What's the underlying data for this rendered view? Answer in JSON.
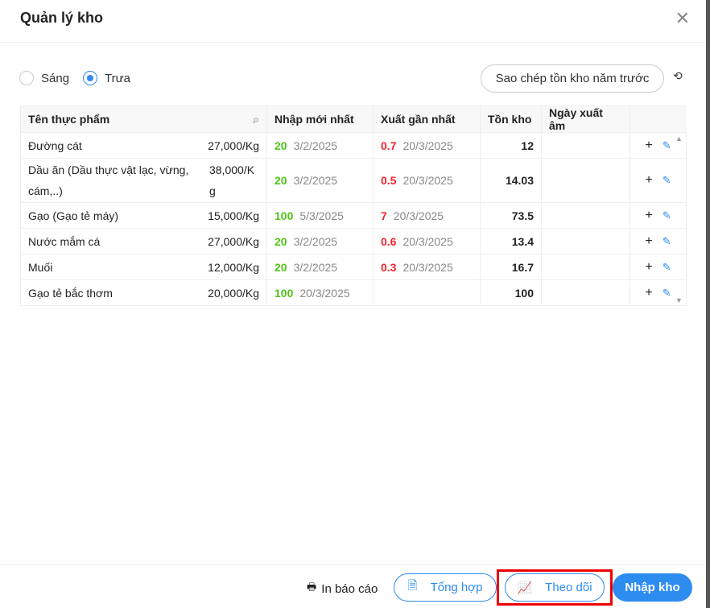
{
  "title": "Quản lý kho",
  "shift": {
    "options": [
      "Sáng",
      "Trưa"
    ],
    "selected": "Trưa"
  },
  "copy_button": "Sao chép tồn kho năm trước",
  "table": {
    "headers": [
      "Tên thực phẩm",
      "Nhập mới nhất",
      "Xuất gần nhất",
      "Tồn kho",
      "Ngày xuất âm"
    ],
    "rows": [
      {
        "name": "Đường cát",
        "price": "27,000/Kg",
        "in_qty": "20",
        "in_date": "3/2/2025",
        "out_qty": "0.7",
        "out_date": "20/3/2025",
        "stock": "12",
        "neg_date": ""
      },
      {
        "name": "Dầu ăn (Dầu thực vật lạc, vừng, cám,..)",
        "price": "38,000/Kg",
        "in_qty": "20",
        "in_date": "3/2/2025",
        "out_qty": "0.5",
        "out_date": "20/3/2025",
        "stock": "14.03",
        "neg_date": ""
      },
      {
        "name": "Gạo (Gạo tẻ máy)",
        "price": "15,000/Kg",
        "in_qty": "100",
        "in_date": "5/3/2025",
        "out_qty": "7",
        "out_date": "20/3/2025",
        "stock": "73.5",
        "neg_date": ""
      },
      {
        "name": "Nước mắm cá",
        "price": "27,000/Kg",
        "in_qty": "20",
        "in_date": "3/2/2025",
        "out_qty": "0.6",
        "out_date": "20/3/2025",
        "stock": "13.4",
        "neg_date": ""
      },
      {
        "name": "Muối",
        "price": "12,000/Kg",
        "in_qty": "20",
        "in_date": "3/2/2025",
        "out_qty": "0.3",
        "out_date": "20/3/2025",
        "stock": "16.7",
        "neg_date": ""
      },
      {
        "name": "Gạo tẻ bắc thơm",
        "price": "20,000/Kg",
        "in_qty": "100",
        "in_date": "20/3/2025",
        "out_qty": "",
        "out_date": "",
        "stock": "100",
        "neg_date": ""
      }
    ]
  },
  "footer": {
    "print": "In báo cáo",
    "summary": "Tổng hợp",
    "track": "Theo dõi",
    "import": "Nhập kho"
  },
  "colors": {
    "accent": "#2d8cf0",
    "in": "#52c41a",
    "out": "#f5222d",
    "highlight": "#e00000"
  }
}
